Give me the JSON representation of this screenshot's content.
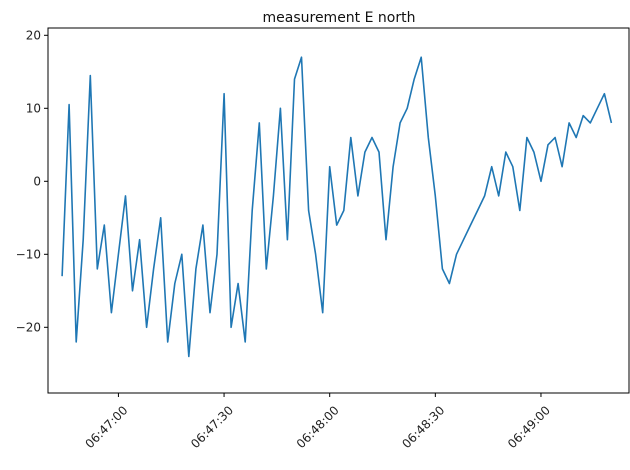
{
  "chart_data": {
    "type": "line",
    "title": "measurement E north",
    "xlabel": "",
    "ylabel": "",
    "x_ticks": [
      "06:47:00",
      "06:47:30",
      "06:48:00",
      "06:48:30",
      "06:49:00"
    ],
    "y_ticks": [
      20,
      10,
      0,
      -10,
      -20
    ],
    "xlim": [
      "06:46:40",
      "06:49:25"
    ],
    "ylim": [
      -29,
      21
    ],
    "grid": false,
    "series": [
      {
        "color": "#1f77b4",
        "x": [
          "06:46:44",
          "06:46:46",
          "06:46:48",
          "06:46:50",
          "06:46:52",
          "06:46:54",
          "06:46:56",
          "06:46:58",
          "06:47:00",
          "06:47:02",
          "06:47:04",
          "06:47:06",
          "06:47:08",
          "06:47:10",
          "06:47:12",
          "06:47:14",
          "06:47:16",
          "06:47:18",
          "06:47:20",
          "06:47:22",
          "06:47:24",
          "06:47:26",
          "06:47:28",
          "06:47:30",
          "06:47:32",
          "06:47:34",
          "06:47:36",
          "06:47:38",
          "06:47:40",
          "06:47:42",
          "06:47:44",
          "06:47:46",
          "06:47:48",
          "06:47:50",
          "06:47:52",
          "06:47:54",
          "06:47:56",
          "06:47:58",
          "06:48:00",
          "06:48:02",
          "06:48:04",
          "06:48:06",
          "06:48:08",
          "06:48:10",
          "06:48:12",
          "06:48:14",
          "06:48:16",
          "06:48:18",
          "06:48:20",
          "06:48:22",
          "06:48:24",
          "06:48:26",
          "06:48:28",
          "06:48:30",
          "06:48:32",
          "06:48:34",
          "06:48:36",
          "06:48:38",
          "06:48:40",
          "06:48:42",
          "06:48:44",
          "06:48:46",
          "06:48:48",
          "06:48:50",
          "06:48:52",
          "06:48:54",
          "06:48:56",
          "06:48:58",
          "06:49:00",
          "06:49:02",
          "06:49:04",
          "06:49:06",
          "06:49:08",
          "06:49:10",
          "06:49:12",
          "06:49:14",
          "06:49:16",
          "06:49:18",
          "06:49:20"
        ],
        "y": [
          -13,
          10.5,
          -22,
          -8,
          14.5,
          -12,
          -6,
          -18,
          -10,
          -2,
          -15,
          -8,
          -20,
          -12,
          -5,
          -22,
          -14,
          -10,
          -24,
          -12,
          -6,
          -18,
          -10,
          12,
          -20,
          -14,
          -22,
          -4,
          8,
          -12,
          -2,
          10,
          -8,
          14,
          17,
          -4,
          -10,
          -18,
          2,
          -6,
          -4,
          6,
          -2,
          4,
          6,
          4,
          -8,
          2,
          8,
          10,
          14,
          17,
          6,
          -2,
          -12,
          -14,
          -10,
          -8,
          -6,
          -4,
          -2,
          2,
          -2,
          4,
          2,
          -4,
          6,
          4,
          0,
          5,
          6,
          2,
          8,
          6,
          9,
          8,
          10,
          12,
          8
        ]
      }
    ]
  }
}
